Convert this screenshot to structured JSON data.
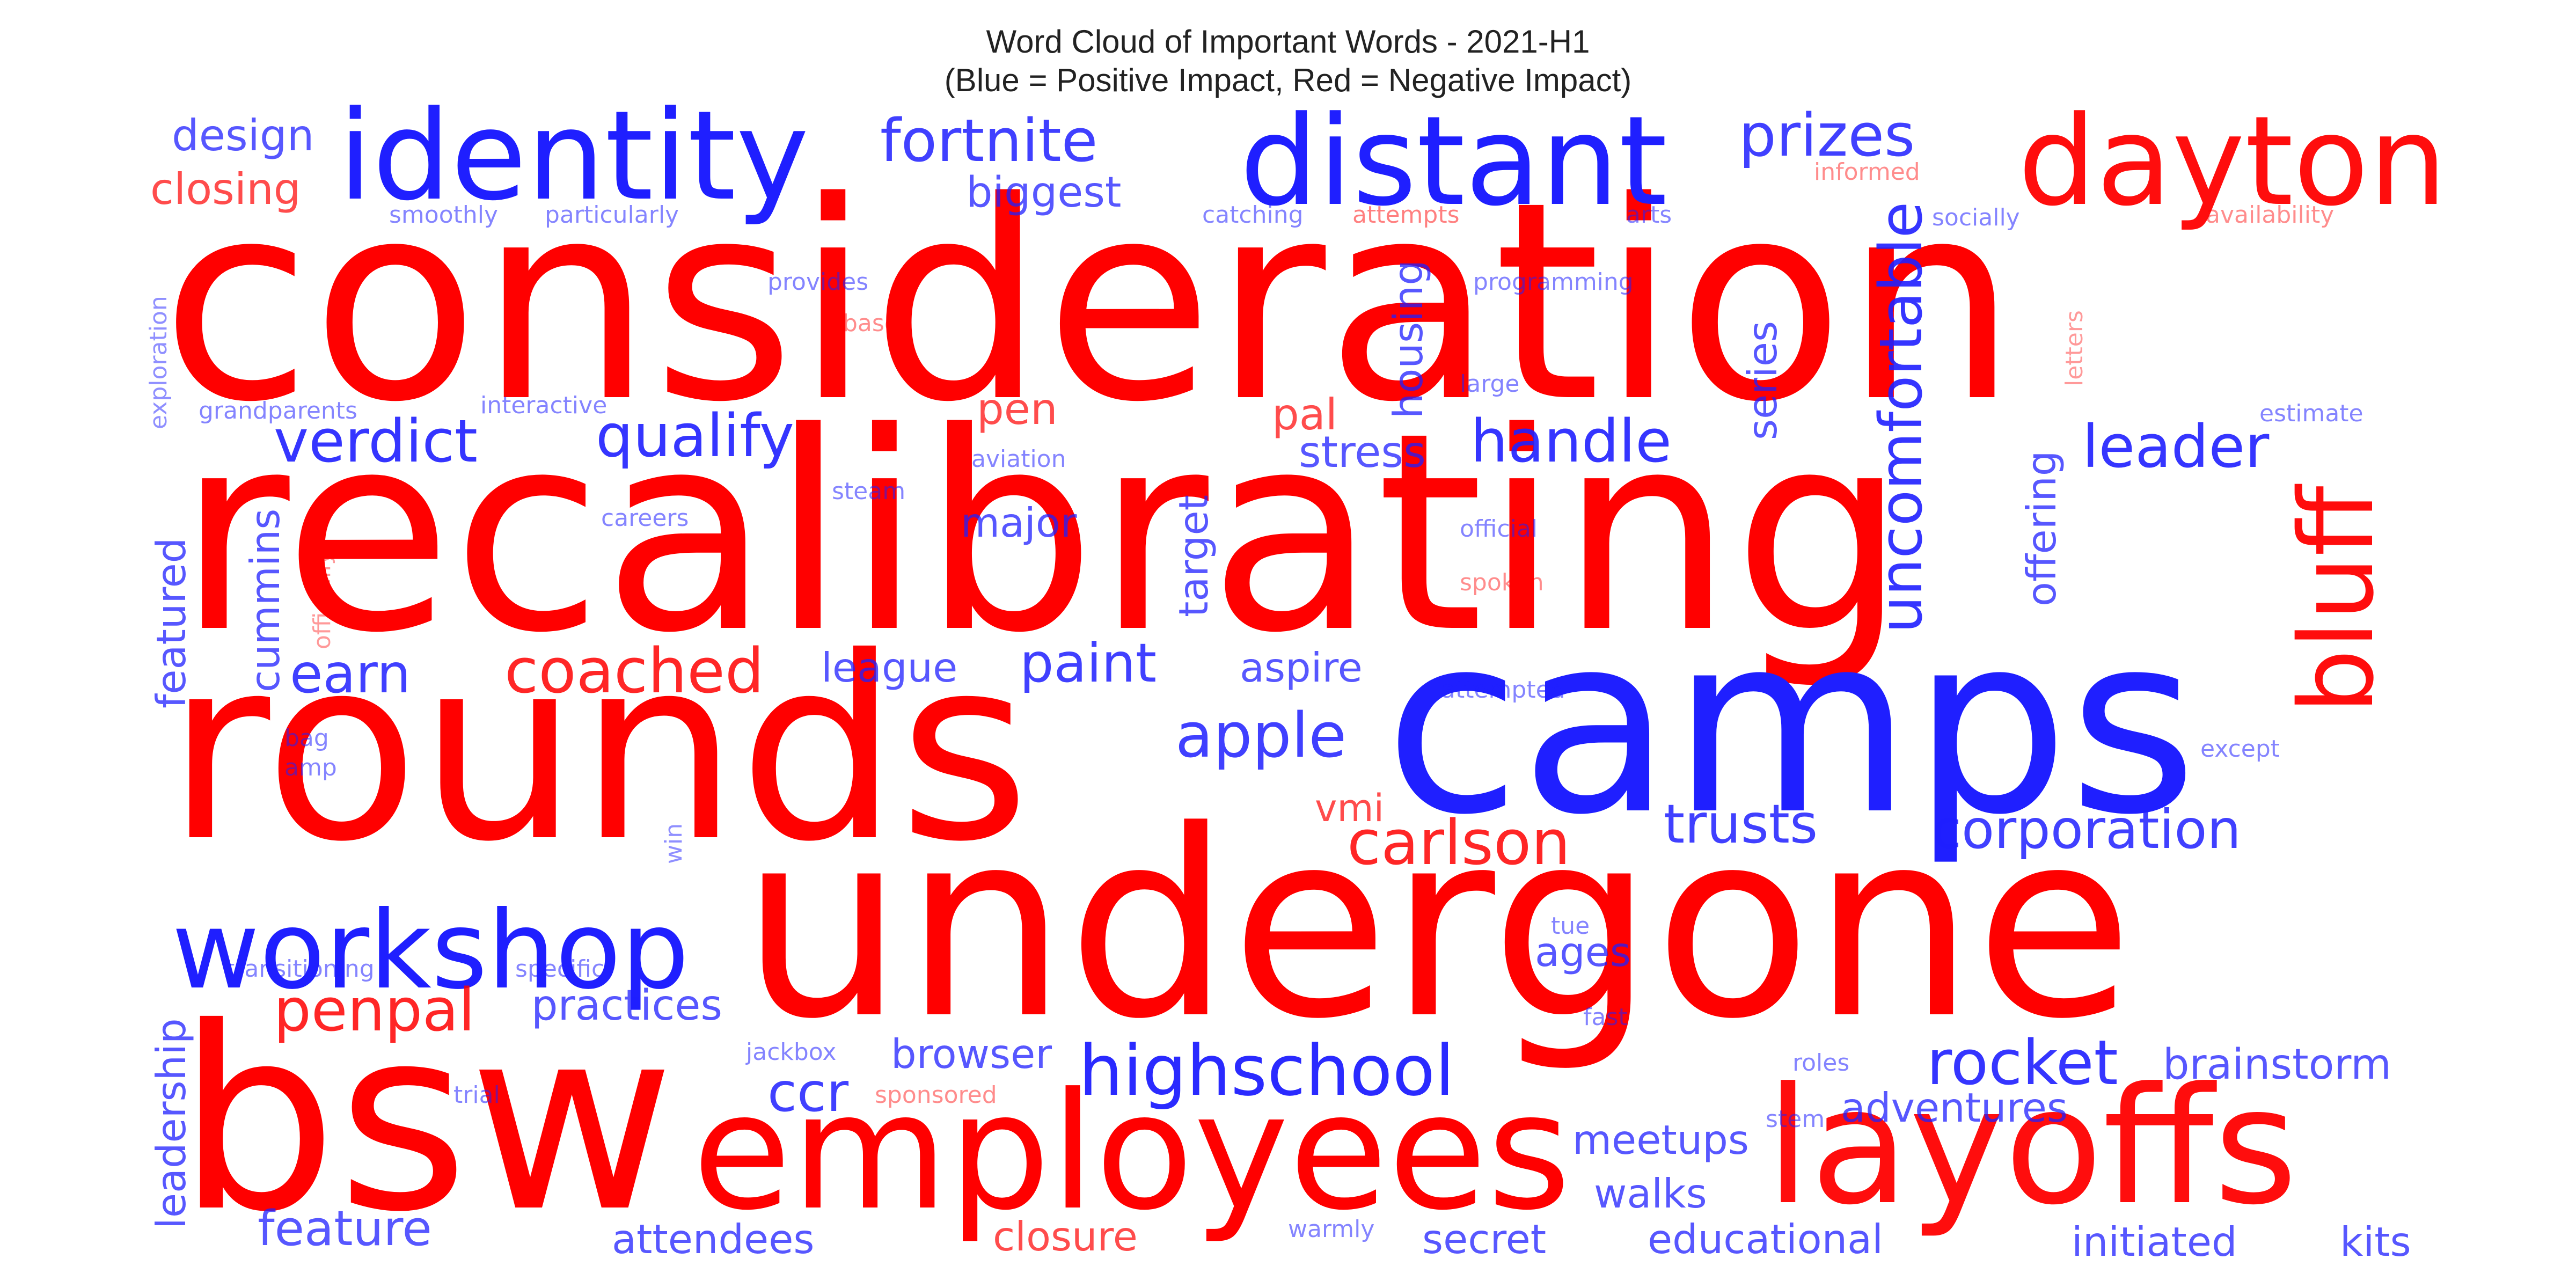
{
  "title": "Word Cloud of Important Words - 2021-H1",
  "subtitle": "(Blue = Positive Impact, Red = Negative Impact)",
  "colors": {
    "positive": "#1f1fff",
    "negative": "#ff0000"
  },
  "words": [
    {
      "text": "consideration",
      "impact": "negative",
      "weight": 1.0,
      "opacity": 1.0
    },
    {
      "text": "recalibrating",
      "impact": "negative",
      "weight": 0.98,
      "opacity": 1.0
    },
    {
      "text": "rounds",
      "impact": "negative",
      "weight": 0.95,
      "opacity": 1.0
    },
    {
      "text": "undergone",
      "impact": "negative",
      "weight": 0.93,
      "opacity": 1.0
    },
    {
      "text": "bsw",
      "impact": "negative",
      "weight": 0.9,
      "opacity": 1.0
    },
    {
      "text": "camps",
      "impact": "positive",
      "weight": 0.8,
      "opacity": 1.0
    },
    {
      "text": "employees",
      "impact": "negative",
      "weight": 0.6,
      "opacity": 1.0
    },
    {
      "text": "layoffs",
      "impact": "negative",
      "weight": 0.55,
      "opacity": 0.95
    },
    {
      "text": "distant",
      "impact": "positive",
      "weight": 0.45,
      "opacity": 1.0
    },
    {
      "text": "identity",
      "impact": "positive",
      "weight": 0.42,
      "opacity": 1.0
    },
    {
      "text": "dayton",
      "impact": "negative",
      "weight": 0.4,
      "opacity": 0.95
    },
    {
      "text": "workshop",
      "impact": "positive",
      "weight": 0.4,
      "opacity": 1.0
    },
    {
      "text": "bluff",
      "impact": "negative",
      "weight": 0.38,
      "opacity": 0.95
    },
    {
      "text": "highschool",
      "impact": "positive",
      "weight": 0.25,
      "opacity": 0.95
    },
    {
      "text": "fortnite",
      "impact": "positive",
      "weight": 0.22,
      "opacity": 0.85
    },
    {
      "text": "prizes",
      "impact": "positive",
      "weight": 0.22,
      "opacity": 0.85
    },
    {
      "text": "uncomfortable",
      "impact": "positive",
      "weight": 0.22,
      "opacity": 0.9
    },
    {
      "text": "coached",
      "impact": "negative",
      "weight": 0.22,
      "opacity": 0.85
    },
    {
      "text": "carlson",
      "impact": "negative",
      "weight": 0.22,
      "opacity": 0.85
    },
    {
      "text": "rocket",
      "impact": "positive",
      "weight": 0.22,
      "opacity": 0.9
    },
    {
      "text": "apple",
      "impact": "positive",
      "weight": 0.22,
      "opacity": 0.85
    },
    {
      "text": "penpal",
      "impact": "negative",
      "weight": 0.2,
      "opacity": 0.85
    },
    {
      "text": "verdict",
      "impact": "positive",
      "weight": 0.2,
      "opacity": 0.9
    },
    {
      "text": "qualify",
      "impact": "positive",
      "weight": 0.2,
      "opacity": 0.9
    },
    {
      "text": "handle",
      "impact": "positive",
      "weight": 0.2,
      "opacity": 0.9
    },
    {
      "text": "leader",
      "impact": "positive",
      "weight": 0.2,
      "opacity": 0.9
    },
    {
      "text": "corporation",
      "impact": "positive",
      "weight": 0.2,
      "opacity": 0.85
    },
    {
      "text": "trusts",
      "impact": "positive",
      "weight": 0.2,
      "opacity": 0.85
    },
    {
      "text": "paint",
      "impact": "positive",
      "weight": 0.2,
      "opacity": 0.85
    },
    {
      "text": "earn",
      "impact": "positive",
      "weight": 0.2,
      "opacity": 0.85
    },
    {
      "text": "ccr",
      "impact": "positive",
      "weight": 0.2,
      "opacity": 0.85
    },
    {
      "text": "design",
      "impact": "positive",
      "weight": 0.14,
      "opacity": 0.75
    },
    {
      "text": "closing",
      "impact": "negative",
      "weight": 0.14,
      "opacity": 0.7
    },
    {
      "text": "biggest",
      "impact": "positive",
      "weight": 0.14,
      "opacity": 0.75
    },
    {
      "text": "housing",
      "impact": "positive",
      "weight": 0.14,
      "opacity": 0.75
    },
    {
      "text": "series",
      "impact": "positive",
      "weight": 0.14,
      "opacity": 0.75
    },
    {
      "text": "offering",
      "impact": "positive",
      "weight": 0.14,
      "opacity": 0.75
    },
    {
      "text": "pen",
      "impact": "negative",
      "weight": 0.14,
      "opacity": 0.7
    },
    {
      "text": "pal",
      "impact": "negative",
      "weight": 0.14,
      "opacity": 0.7
    },
    {
      "text": "stress",
      "impact": "positive",
      "weight": 0.14,
      "opacity": 0.75
    },
    {
      "text": "target",
      "impact": "positive",
      "weight": 0.14,
      "opacity": 0.75
    },
    {
      "text": "major",
      "impact": "positive",
      "weight": 0.14,
      "opacity": 0.75
    },
    {
      "text": "cummins",
      "impact": "positive",
      "weight": 0.14,
      "opacity": 0.75
    },
    {
      "text": "featured",
      "impact": "positive",
      "weight": 0.14,
      "opacity": 0.75
    },
    {
      "text": "league",
      "impact": "positive",
      "weight": 0.14,
      "opacity": 0.75
    },
    {
      "text": "aspire",
      "impact": "positive",
      "weight": 0.14,
      "opacity": 0.75
    },
    {
      "text": "vmi",
      "impact": "negative",
      "weight": 0.14,
      "opacity": 0.7
    },
    {
      "text": "ages",
      "impact": "positive",
      "weight": 0.14,
      "opacity": 0.75
    },
    {
      "text": "practices",
      "impact": "positive",
      "weight": 0.14,
      "opacity": 0.75
    },
    {
      "text": "browser",
      "impact": "positive",
      "weight": 0.14,
      "opacity": 0.75
    },
    {
      "text": "brainstorm",
      "impact": "positive",
      "weight": 0.14,
      "opacity": 0.75
    },
    {
      "text": "adventures",
      "impact": "positive",
      "weight": 0.14,
      "opacity": 0.75
    },
    {
      "text": "meetups",
      "impact": "positive",
      "weight": 0.14,
      "opacity": 0.75
    },
    {
      "text": "walks",
      "impact": "positive",
      "weight": 0.14,
      "opacity": 0.75
    },
    {
      "text": "leadership",
      "impact": "positive",
      "weight": 0.14,
      "opacity": 0.75
    },
    {
      "text": "feature",
      "impact": "positive",
      "weight": 0.14,
      "opacity": 0.75
    },
    {
      "text": "attendees",
      "impact": "positive",
      "weight": 0.14,
      "opacity": 0.75
    },
    {
      "text": "closure",
      "impact": "negative",
      "weight": 0.14,
      "opacity": 0.7
    },
    {
      "text": "secret",
      "impact": "positive",
      "weight": 0.14,
      "opacity": 0.75
    },
    {
      "text": "educational",
      "impact": "positive",
      "weight": 0.14,
      "opacity": 0.75
    },
    {
      "text": "initiated",
      "impact": "positive",
      "weight": 0.14,
      "opacity": 0.75
    },
    {
      "text": "kits",
      "impact": "positive",
      "weight": 0.14,
      "opacity": 0.75
    },
    {
      "text": "smoothly",
      "impact": "positive",
      "weight": 0.08,
      "opacity": 0.55
    },
    {
      "text": "particularly",
      "impact": "positive",
      "weight": 0.08,
      "opacity": 0.55
    },
    {
      "text": "catching",
      "impact": "positive",
      "weight": 0.08,
      "opacity": 0.55
    },
    {
      "text": "attempts",
      "impact": "negative",
      "weight": 0.08,
      "opacity": 0.5
    },
    {
      "text": "arts",
      "impact": "positive",
      "weight": 0.08,
      "opacity": 0.55
    },
    {
      "text": "informed",
      "impact": "negative",
      "weight": 0.08,
      "opacity": 0.45
    },
    {
      "text": "socially",
      "impact": "positive",
      "weight": 0.08,
      "opacity": 0.55
    },
    {
      "text": "availability",
      "impact": "negative",
      "weight": 0.08,
      "opacity": 0.45
    },
    {
      "text": "exploration",
      "impact": "positive",
      "weight": 0.08,
      "opacity": 0.5
    },
    {
      "text": "provides",
      "impact": "positive",
      "weight": 0.08,
      "opacity": 0.55
    },
    {
      "text": "base",
      "impact": "negative",
      "weight": 0.08,
      "opacity": 0.45
    },
    {
      "text": "programming",
      "impact": "positive",
      "weight": 0.08,
      "opacity": 0.55
    },
    {
      "text": "letters",
      "impact": "negative",
      "weight": 0.08,
      "opacity": 0.4
    },
    {
      "text": "grandparents",
      "impact": "positive",
      "weight": 0.08,
      "opacity": 0.55
    },
    {
      "text": "interactive",
      "impact": "positive",
      "weight": 0.08,
      "opacity": 0.55
    },
    {
      "text": "large",
      "impact": "positive",
      "weight": 0.08,
      "opacity": 0.55
    },
    {
      "text": "estimate",
      "impact": "positive",
      "weight": 0.08,
      "opacity": 0.55
    },
    {
      "text": "aviation",
      "impact": "positive",
      "weight": 0.08,
      "opacity": 0.55
    },
    {
      "text": "officially",
      "impact": "negative",
      "weight": 0.08,
      "opacity": 0.4
    },
    {
      "text": "steam",
      "impact": "positive",
      "weight": 0.08,
      "opacity": 0.55
    },
    {
      "text": "careers",
      "impact": "positive",
      "weight": 0.08,
      "opacity": 0.55
    },
    {
      "text": "official",
      "impact": "positive",
      "weight": 0.08,
      "opacity": 0.55
    },
    {
      "text": "spoken",
      "impact": "negative",
      "weight": 0.08,
      "opacity": 0.45
    },
    {
      "text": "attempted",
      "impact": "positive",
      "weight": 0.08,
      "opacity": 0.55
    },
    {
      "text": "except",
      "impact": "positive",
      "weight": 0.08,
      "opacity": 0.55
    },
    {
      "text": "bag",
      "impact": "positive",
      "weight": 0.08,
      "opacity": 0.55
    },
    {
      "text": "amp",
      "impact": "positive",
      "weight": 0.08,
      "opacity": 0.55
    },
    {
      "text": "win",
      "impact": "positive",
      "weight": 0.08,
      "opacity": 0.5
    },
    {
      "text": "tue",
      "impact": "positive",
      "weight": 0.08,
      "opacity": 0.55
    },
    {
      "text": "transitioning",
      "impact": "positive",
      "weight": 0.08,
      "opacity": 0.55
    },
    {
      "text": "specific",
      "impact": "positive",
      "weight": 0.08,
      "opacity": 0.55
    },
    {
      "text": "fast",
      "impact": "positive",
      "weight": 0.08,
      "opacity": 0.55
    },
    {
      "text": "jackbox",
      "impact": "positive",
      "weight": 0.08,
      "opacity": 0.55
    },
    {
      "text": "roles",
      "impact": "positive",
      "weight": 0.08,
      "opacity": 0.55
    },
    {
      "text": "trial",
      "impact": "positive",
      "weight": 0.08,
      "opacity": 0.55
    },
    {
      "text": "sponsored",
      "impact": "negative",
      "weight": 0.08,
      "opacity": 0.45
    },
    {
      "text": "stem",
      "impact": "positive",
      "weight": 0.08,
      "opacity": 0.55
    },
    {
      "text": "warmly",
      "impact": "positive",
      "weight": 0.08,
      "opacity": 0.55
    }
  ]
}
